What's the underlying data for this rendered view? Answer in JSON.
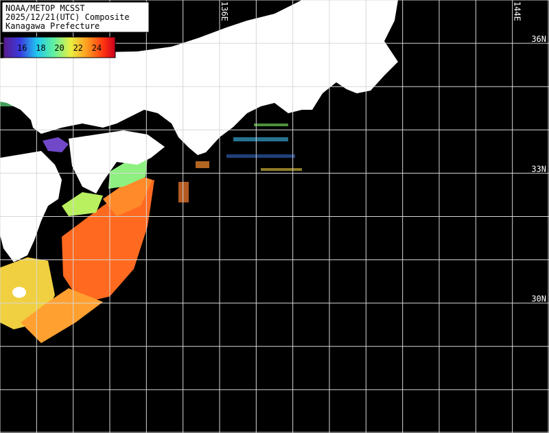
{
  "header": {
    "lines": [
      "NOAA/METOP MCSST",
      "2025/12/21(UTC) Composite",
      "Kanagawa Prefecture"
    ]
  },
  "colorbar": {
    "range": [
      14,
      26
    ],
    "ticks": [
      16,
      18,
      20,
      22,
      24
    ]
  },
  "map": {
    "lonlim": [
      130,
      145
    ],
    "latlim": [
      27,
      37
    ],
    "grid_step": 1,
    "lon_labels": [
      {
        "value": 136,
        "label": "136E"
      },
      {
        "value": 144,
        "label": "144E"
      }
    ],
    "lat_labels": [
      {
        "value": 36,
        "label": "36N"
      },
      {
        "value": 33,
        "label": "33N"
      },
      {
        "value": 30,
        "label": "30N"
      }
    ]
  }
}
